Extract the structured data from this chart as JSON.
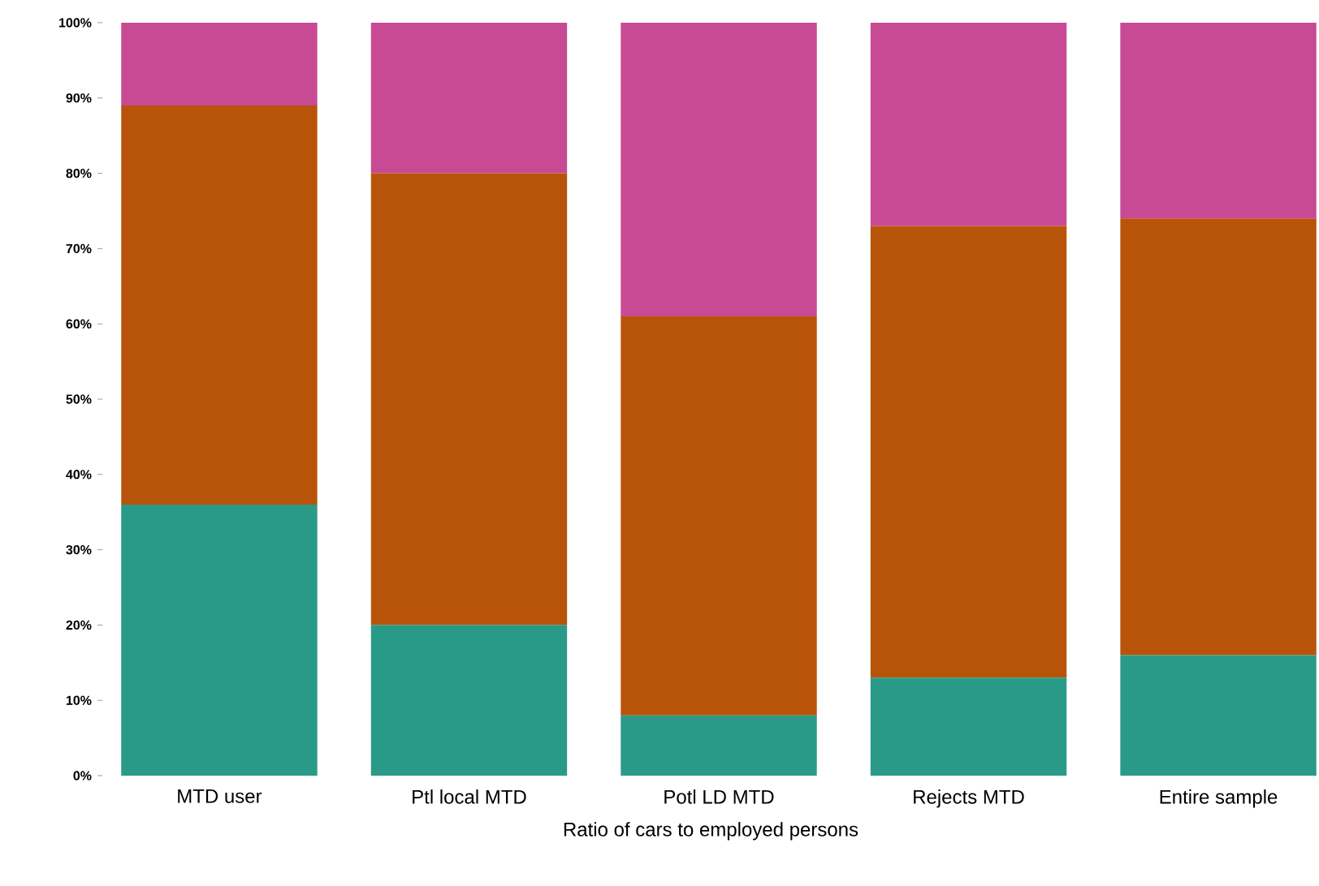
{
  "chart_data": {
    "type": "bar",
    "stacked": true,
    "xlabel": "Ratio of cars to employed persons",
    "categories": [
      "MTD user",
      "Ptl local MTD",
      "Potl LD MTD",
      "Rejects MTD",
      "Entire sample"
    ],
    "series": [
      {
        "color": "#2a9a88",
        "values": [
          36,
          20,
          8,
          13,
          16
        ]
      },
      {
        "color": "#b8540a",
        "values": [
          53,
          60,
          53,
          60,
          58
        ]
      },
      {
        "color": "#c84a94",
        "values": [
          11,
          20,
          39,
          27,
          26
        ]
      }
    ],
    "ylim": [
      0,
      100
    ],
    "yticks": [
      {
        "value": 0,
        "label": "0%"
      },
      {
        "value": 10,
        "label": "10%"
      },
      {
        "value": 20,
        "label": "20%"
      },
      {
        "value": 30,
        "label": "30%"
      },
      {
        "value": 40,
        "label": "40%"
      },
      {
        "value": 50,
        "label": "50%"
      },
      {
        "value": 60,
        "label": "60%"
      },
      {
        "value": 70,
        "label": "70%"
      },
      {
        "value": 80,
        "label": "80%"
      },
      {
        "value": 90,
        "label": "90%"
      },
      {
        "value": 100,
        "label": "100%"
      }
    ]
  }
}
